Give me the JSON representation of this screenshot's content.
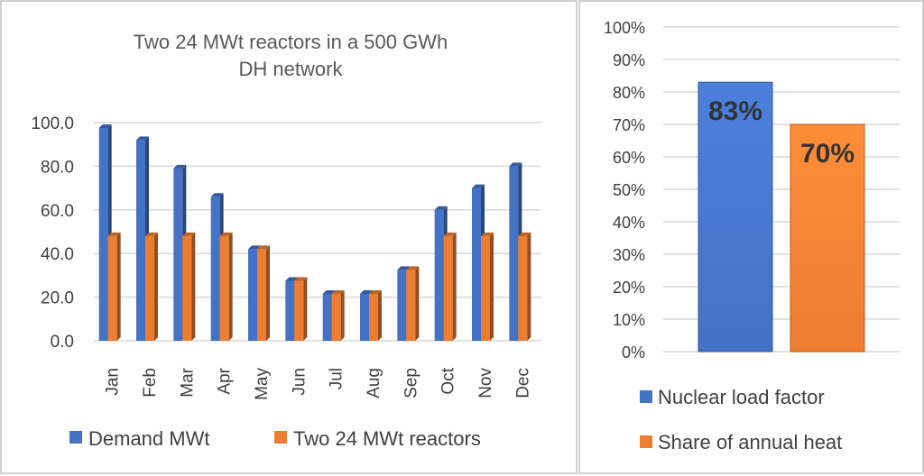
{
  "colors": {
    "blue": "#4472c4",
    "orange": "#ed7d31",
    "grid": "#d9d9d9",
    "text": "#404040"
  },
  "chart_data": [
    {
      "type": "bar",
      "title_lines": [
        "Two 24 MWt reactors in a 500 GWh",
        "DH network"
      ],
      "categories": [
        "Jan",
        "Feb",
        "Mar",
        "Apr",
        "May",
        "Jun",
        "Jul",
        "Aug",
        "Sep",
        "Oct",
        "Nov",
        "Dec"
      ],
      "series": [
        {
          "name": "Demand MWt",
          "color": "#4472c4",
          "values": [
            97.5,
            92,
            79,
            66,
            42,
            27.5,
            21.5,
            21.5,
            32.5,
            60,
            70,
            80
          ]
        },
        {
          "name": "Two 24 MWt reactors",
          "color": "#ed7d31",
          "values": [
            48,
            48,
            48,
            48,
            42,
            27.5,
            21.5,
            21.5,
            32.5,
            48,
            48,
            48
          ]
        }
      ],
      "ylim": [
        0,
        100
      ],
      "yticks": [
        "0.0",
        "20.0",
        "40.0",
        "60.0",
        "80.0",
        "100.0"
      ],
      "grid": true,
      "legend_position": "bottom"
    },
    {
      "type": "bar",
      "categories": [
        "Nuclear load factor",
        "Share of annual heat"
      ],
      "series": [
        {
          "name": "Nuclear load factor",
          "color": "#4472c4",
          "value": 0.83,
          "label": "83%"
        },
        {
          "name": "Share of annual heat",
          "color": "#ed7d31",
          "value": 0.7,
          "label": "70%"
        }
      ],
      "ylim": [
        0,
        1
      ],
      "yticks": [
        "0%",
        "10%",
        "20%",
        "30%",
        "40%",
        "50%",
        "60%",
        "70%",
        "80%",
        "90%",
        "100%"
      ],
      "grid": true,
      "legend_position": "bottom"
    }
  ]
}
